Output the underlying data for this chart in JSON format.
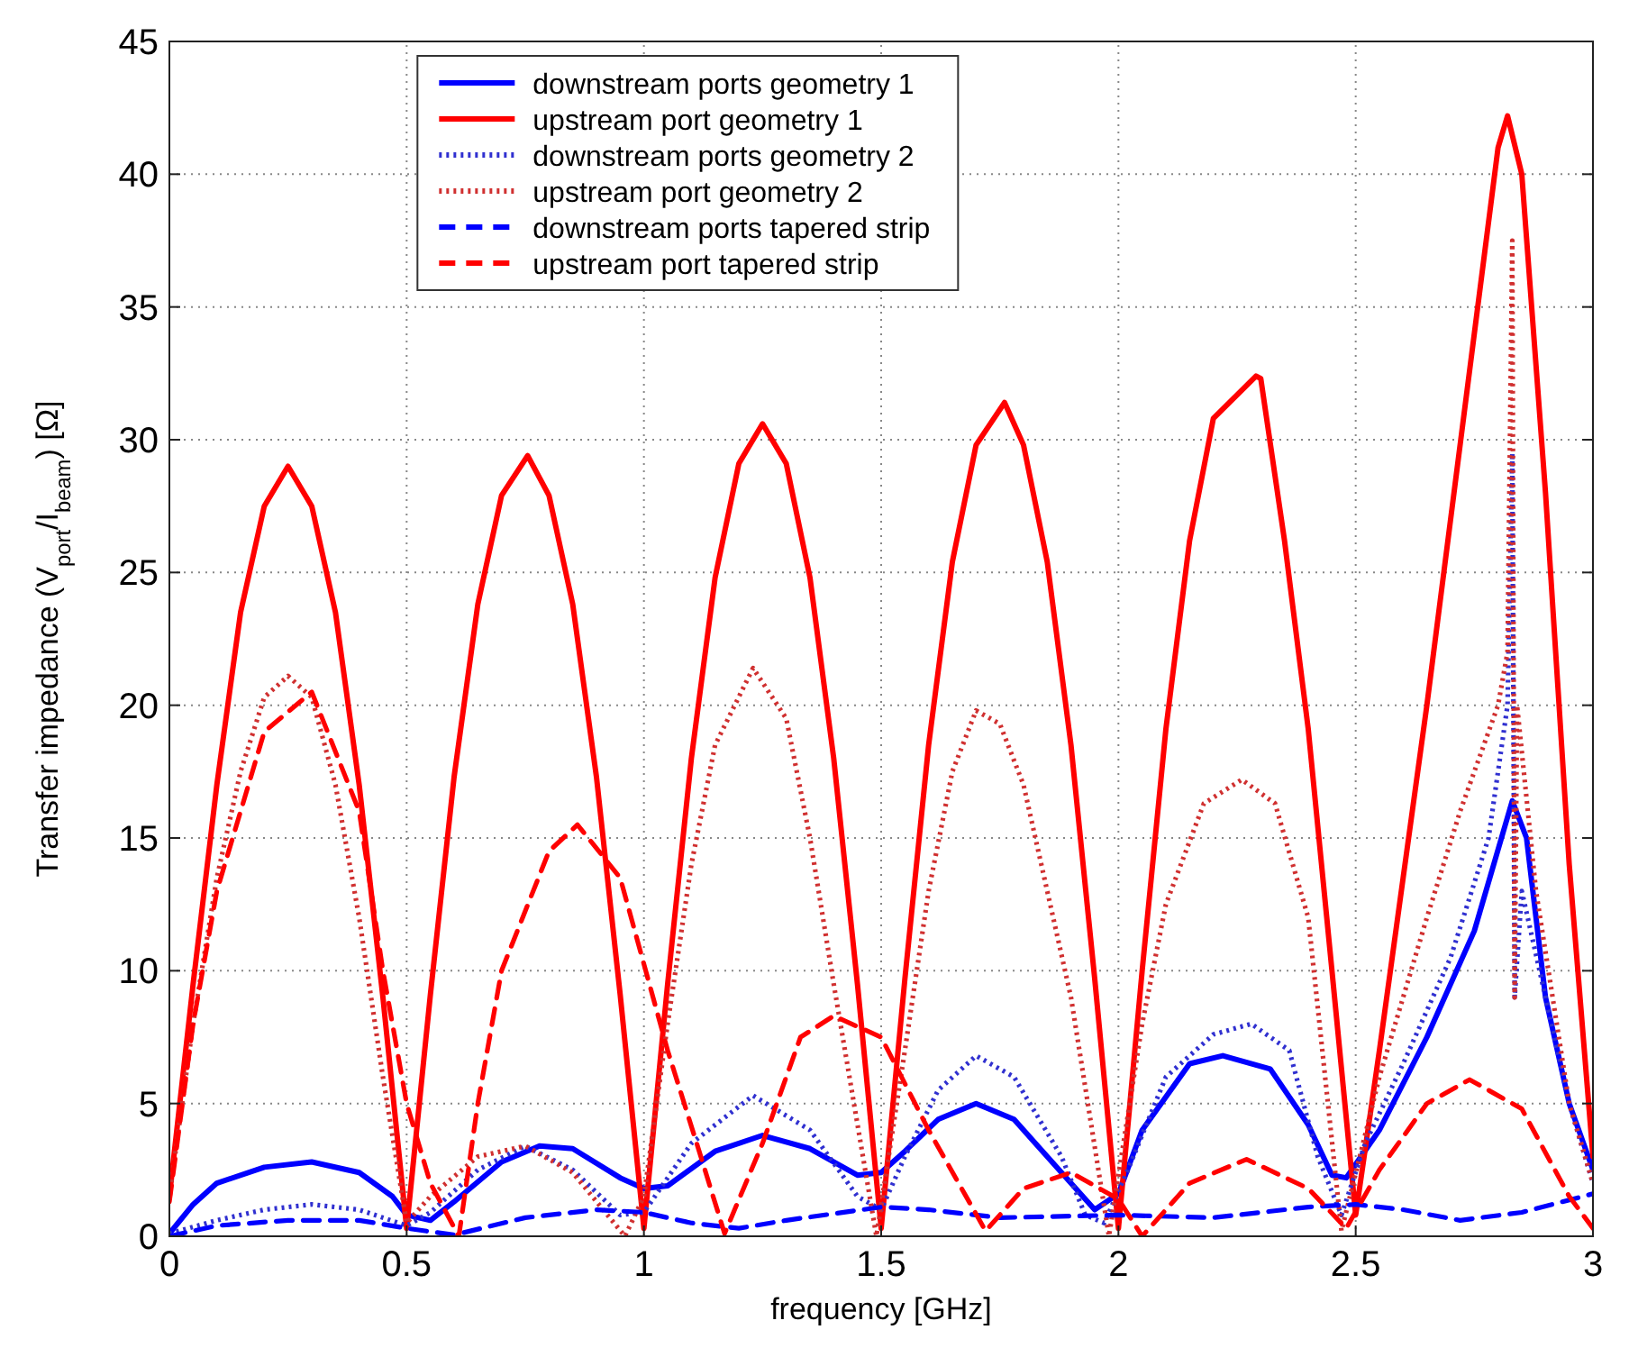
{
  "chart_data": {
    "type": "line",
    "xlabel": "frequency [GHz]",
    "ylabel": "Transfer impedance  (V$_{port}$/I$_{beam}$) [Ω]",
    "xlim": [
      0,
      3
    ],
    "ylim": [
      0,
      45
    ],
    "xticks": [
      0,
      {
        "value": 0.5,
        "label": "0.5"
      },
      1,
      {
        "value": 1.5,
        "label": "1.5"
      },
      2,
      {
        "value": 2.5,
        "label": "2.5"
      },
      3
    ],
    "yticks": [
      0,
      5,
      10,
      15,
      20,
      25,
      30,
      35,
      40,
      45
    ],
    "grid": true,
    "legend": "top",
    "series": [
      {
        "name": "downstream ports geometry 1",
        "color": "#0000ff",
        "line_style": "solid",
        "x": [
          0,
          0.05,
          0.1,
          0.2,
          0.3,
          0.4,
          0.47,
          0.5,
          0.55,
          0.6,
          0.7,
          0.78,
          0.85,
          0.95,
          1.0,
          1.05,
          1.15,
          1.25,
          1.35,
          1.45,
          1.5,
          1.55,
          1.62,
          1.7,
          1.78,
          1.88,
          1.95,
          2.0,
          2.05,
          2.15,
          2.22,
          2.32,
          2.4,
          2.45,
          2.48,
          2.55,
          2.65,
          2.75,
          2.83,
          2.86,
          2.9,
          2.95,
          3.0
        ],
        "values": [
          0.1,
          1.2,
          2.0,
          2.6,
          2.8,
          2.4,
          1.5,
          0.8,
          0.6,
          1.3,
          2.8,
          3.4,
          3.3,
          2.2,
          1.8,
          1.9,
          3.2,
          3.8,
          3.3,
          2.3,
          2.4,
          3.2,
          4.4,
          5.0,
          4.4,
          2.4,
          1.0,
          1.6,
          4.0,
          6.5,
          6.8,
          6.3,
          4.2,
          2.3,
          2.2,
          4.0,
          7.5,
          11.5,
          16.4,
          15,
          9,
          5,
          2.5
        ]
      },
      {
        "name": "upstream port geometry 1",
        "color": "#ff0000",
        "line_style": "solid",
        "x": [
          0,
          0.05,
          0.1,
          0.15,
          0.2,
          0.25,
          0.3,
          0.35,
          0.4,
          0.45,
          0.5,
          0.55,
          0.6,
          0.65,
          0.7,
          0.755,
          0.8,
          0.85,
          0.9,
          0.95,
          1.0,
          1.05,
          1.1,
          1.15,
          1.2,
          1.25,
          1.3,
          1.35,
          1.4,
          1.45,
          1.5,
          1.55,
          1.6,
          1.65,
          1.7,
          1.76,
          1.8,
          1.85,
          1.9,
          1.95,
          2.0,
          2.05,
          2.1,
          2.15,
          2.2,
          2.29,
          2.3,
          2.35,
          2.4,
          2.45,
          2.5,
          2.55,
          2.6,
          2.65,
          2.7,
          2.75,
          2.8,
          2.82,
          2.85,
          2.9,
          2.95,
          3.0
        ],
        "values": [
          1.5,
          9.5,
          17,
          23.5,
          27.5,
          29,
          27.5,
          23.5,
          17,
          9,
          0.3,
          9.1,
          17.3,
          23.8,
          27.9,
          29.4,
          27.9,
          23.8,
          17.3,
          9.1,
          0.3,
          9.5,
          18,
          24.8,
          29.1,
          30.6,
          29.1,
          24.8,
          18,
          9.5,
          0.3,
          9.7,
          18.5,
          25.4,
          29.8,
          31.4,
          29.8,
          25.4,
          18.5,
          9.7,
          0.3,
          10,
          19.1,
          26.2,
          30.8,
          32.4,
          32.3,
          26.2,
          19.1,
          10,
          0.8,
          7,
          13.5,
          20,
          27,
          34,
          41,
          42.2,
          40,
          28,
          14,
          3
        ]
      },
      {
        "name": "downstream ports geometry 2",
        "color": "#3030d0",
        "line_style": "dotted",
        "x": [
          0,
          0.1,
          0.2,
          0.3,
          0.4,
          0.5,
          0.55,
          0.65,
          0.75,
          0.85,
          0.95,
          1.0,
          1.1,
          1.23,
          1.35,
          1.45,
          1.5,
          1.55,
          1.62,
          1.7,
          1.78,
          1.88,
          1.93,
          1.97,
          2.02,
          2.1,
          2.2,
          2.28,
          2.36,
          2.42,
          2.47,
          2.52,
          2.6,
          2.7,
          2.78,
          2.82,
          2.83,
          2.835,
          2.85,
          2.9,
          2.95,
          3.0
        ],
        "values": [
          0.1,
          0.6,
          1.0,
          1.2,
          1.0,
          0.4,
          0.9,
          2.5,
          3.4,
          2.5,
          0.8,
          0.9,
          3.5,
          5.3,
          4.0,
          1.5,
          1.0,
          3,
          5.5,
          6.8,
          6.0,
          3,
          0.8,
          0.5,
          2.5,
          6,
          7.6,
          8.0,
          7,
          3,
          0.8,
          3.5,
          6.5,
          10.5,
          15,
          20,
          29.5,
          9,
          13,
          9,
          5,
          2
        ]
      },
      {
        "name": "upstream port geometry 2",
        "color": "#d03030",
        "line_style": "dotted",
        "x": [
          0,
          0.05,
          0.1,
          0.15,
          0.2,
          0.25,
          0.3,
          0.35,
          0.4,
          0.45,
          0.5,
          0.55,
          0.65,
          0.75,
          0.85,
          0.96,
          1.0,
          1.05,
          1.1,
          1.15,
          1.23,
          1.3,
          1.35,
          1.4,
          1.49,
          1.55,
          1.6,
          1.65,
          1.7,
          1.75,
          1.8,
          1.9,
          1.98,
          2.05,
          2.1,
          2.18,
          2.26,
          2.33,
          2.4,
          2.47,
          2.55,
          2.65,
          2.72,
          2.8,
          2.82,
          2.83,
          2.835,
          2.84,
          2.88,
          2.95,
          3.0
        ],
        "values": [
          1.5,
          8,
          13.5,
          17.5,
          20.3,
          21.1,
          20.3,
          17,
          12,
          6,
          0.5,
          1.5,
          3,
          3.4,
          2.4,
          0,
          1.5,
          8,
          14,
          18.5,
          21.4,
          19.5,
          15,
          9.5,
          0,
          7,
          13,
          17.5,
          19.8,
          19.3,
          17,
          9,
          0,
          8,
          12.5,
          16.3,
          17.2,
          16.3,
          12,
          0.2,
          6,
          12,
          16,
          20,
          22,
          37.5,
          9,
          20,
          13,
          5,
          2
        ]
      },
      {
        "name": "downstream ports tapered strip",
        "color": "#0000ff",
        "line_style": "dashed",
        "x": [
          0,
          0.1,
          0.25,
          0.4,
          0.5,
          0.6,
          0.75,
          0.9,
          1.0,
          1.1,
          1.2,
          1.3,
          1.5,
          1.6,
          1.75,
          2.0,
          2.2,
          2.4,
          2.5,
          2.6,
          2.72,
          2.85,
          3.0
        ],
        "values": [
          0,
          0.4,
          0.6,
          0.6,
          0.3,
          0.05,
          0.7,
          1.0,
          0.9,
          0.5,
          0.3,
          0.6,
          1.1,
          1.0,
          0.7,
          0.8,
          0.7,
          1.1,
          1.2,
          1.0,
          0.6,
          0.9,
          1.6
        ]
      },
      {
        "name": "upstream port tapered strip",
        "color": "#ff0000",
        "line_style": "dashed",
        "x": [
          0,
          0.05,
          0.1,
          0.2,
          0.3,
          0.4,
          0.45,
          0.5,
          0.55,
          0.61,
          0.65,
          0.7,
          0.8,
          0.86,
          0.95,
          1.05,
          1.12,
          1.17,
          1.25,
          1.33,
          1.4,
          1.5,
          1.6,
          1.72,
          1.8,
          1.9,
          2.0,
          2.05,
          2.15,
          2.27,
          2.4,
          2.48,
          2.55,
          2.65,
          2.74,
          2.85,
          2.95,
          3.0
        ],
        "values": [
          1.3,
          8,
          13,
          19,
          20.5,
          16,
          10,
          5,
          2,
          0,
          5,
          10,
          14.5,
          15.5,
          13.5,
          7,
          3,
          0.1,
          3.5,
          7.5,
          8.3,
          7.5,
          4,
          0.2,
          1.8,
          2.4,
          1.4,
          0,
          2,
          2.9,
          1.8,
          0.3,
          2.5,
          5,
          5.9,
          4.8,
          1.5,
          0.3
        ]
      }
    ]
  }
}
